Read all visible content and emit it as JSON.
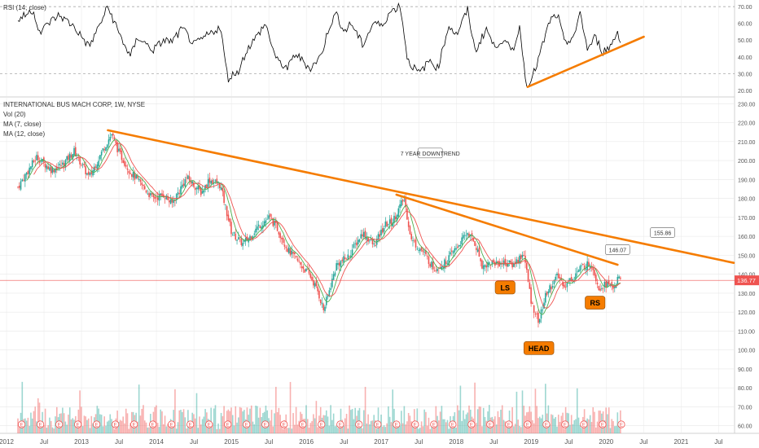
{
  "colors": {
    "up": "#26a69a",
    "down": "#ef5350",
    "ma7": "#4caf50",
    "ma12": "#ef5350",
    "rsi_line": "#000000",
    "trend": "#f57c00",
    "label_fill": "#f57c00",
    "axis_text": "#555555",
    "grid": "#e8e8e8",
    "price_line": "#ef5350",
    "price_tag_bg": "#ef5350"
  },
  "chart_data": {
    "type": "candlestick",
    "symbol_title": "INTERNATIONAL BUS MACH CORP, 1W, NYSE",
    "indicator_labels": [
      "Vol (20)",
      "MA (7, close)",
      "MA (12, close)"
    ],
    "rsi_label": "RSI (14, close)",
    "x_ticks": [
      "2012",
      "Jul",
      "2013",
      "Jul",
      "2014",
      "Jul",
      "2015",
      "Jul",
      "2016",
      "Jul",
      "2017",
      "Jul",
      "2018",
      "Jul",
      "2019",
      "Jul",
      "2020",
      "Jul",
      "2021",
      "Jul"
    ],
    "price_ticks": [
      "230.00",
      "220.00",
      "210.00",
      "200.00",
      "190.00",
      "180.00",
      "170.00",
      "160.00",
      "150.00",
      "140.00",
      "130.00",
      "120.00",
      "110.00",
      "100.00",
      "90.00",
      "80.00",
      "70.00",
      "60.00"
    ],
    "rsi_ticks": [
      "70.00",
      "60.00",
      "50.00",
      "40.00",
      "30.00",
      "20.00"
    ],
    "price_range": [
      56,
      231
    ],
    "rsi_range": [
      17,
      73
    ],
    "last_price": "136.77",
    "close_anchors": [
      [
        2012.0,
        186
      ],
      [
        2012.25,
        202
      ],
      [
        2012.45,
        195
      ],
      [
        2012.6,
        198
      ],
      [
        2012.75,
        205
      ],
      [
        2012.95,
        191
      ],
      [
        2013.15,
        207
      ],
      [
        2013.25,
        214
      ],
      [
        2013.35,
        204
      ],
      [
        2013.5,
        194
      ],
      [
        2013.65,
        187
      ],
      [
        2013.8,
        180
      ],
      [
        2013.95,
        182
      ],
      [
        2014.05,
        177
      ],
      [
        2014.25,
        191
      ],
      [
        2014.45,
        183
      ],
      [
        2014.55,
        190
      ],
      [
        2014.7,
        187
      ],
      [
        2014.85,
        162
      ],
      [
        2015.0,
        156
      ],
      [
        2015.1,
        160
      ],
      [
        2015.2,
        165
      ],
      [
        2015.35,
        170
      ],
      [
        2015.45,
        165
      ],
      [
        2015.6,
        153
      ],
      [
        2015.75,
        146
      ],
      [
        2015.9,
        139
      ],
      [
        2016.0,
        131
      ],
      [
        2016.08,
        121
      ],
      [
        2016.25,
        145
      ],
      [
        2016.4,
        149
      ],
      [
        2016.6,
        162
      ],
      [
        2016.75,
        155
      ],
      [
        2016.9,
        166
      ],
      [
        2017.0,
        168
      ],
      [
        2017.15,
        180
      ],
      [
        2017.25,
        158
      ],
      [
        2017.4,
        152
      ],
      [
        2017.55,
        143
      ],
      [
        2017.7,
        146
      ],
      [
        2017.85,
        154
      ],
      [
        2018.0,
        162
      ],
      [
        2018.1,
        156
      ],
      [
        2018.2,
        144
      ],
      [
        2018.3,
        146
      ],
      [
        2018.5,
        146
      ],
      [
        2018.6,
        145
      ],
      [
        2018.75,
        151
      ],
      [
        2018.85,
        125
      ],
      [
        2018.95,
        115
      ],
      [
        2019.05,
        130
      ],
      [
        2019.2,
        139
      ],
      [
        2019.3,
        134
      ],
      [
        2019.5,
        143
      ],
      [
        2019.6,
        145
      ],
      [
        2019.65,
        146
      ],
      [
        2019.75,
        133
      ],
      [
        2019.85,
        135
      ],
      [
        2019.95,
        133
      ],
      [
        2020.0,
        137
      ],
      [
        2020.05,
        136.77
      ]
    ],
    "rsi_anchors": [
      [
        2012.0,
        62
      ],
      [
        2012.2,
        68
      ],
      [
        2012.3,
        54
      ],
      [
        2012.4,
        60
      ],
      [
        2012.55,
        65
      ],
      [
        2012.75,
        58
      ],
      [
        2012.95,
        46
      ],
      [
        2013.1,
        60
      ],
      [
        2013.2,
        70
      ],
      [
        2013.35,
        54
      ],
      [
        2013.5,
        40
      ],
      [
        2013.6,
        52
      ],
      [
        2013.8,
        44
      ],
      [
        2013.95,
        50
      ],
      [
        2014.05,
        49
      ],
      [
        2014.2,
        57
      ],
      [
        2014.35,
        47
      ],
      [
        2014.5,
        52
      ],
      [
        2014.7,
        58
      ],
      [
        2014.8,
        27
      ],
      [
        2014.95,
        32
      ],
      [
        2015.05,
        44
      ],
      [
        2015.2,
        53
      ],
      [
        2015.3,
        60
      ],
      [
        2015.45,
        38
      ],
      [
        2015.6,
        33
      ],
      [
        2015.7,
        42
      ],
      [
        2015.9,
        33
      ],
      [
        2016.05,
        41
      ],
      [
        2016.15,
        58
      ],
      [
        2016.25,
        66
      ],
      [
        2016.35,
        55
      ],
      [
        2016.45,
        60
      ],
      [
        2016.6,
        47
      ],
      [
        2016.75,
        61
      ],
      [
        2016.85,
        58
      ],
      [
        2016.95,
        66
      ],
      [
        2017.1,
        71
      ],
      [
        2017.2,
        38
      ],
      [
        2017.35,
        30
      ],
      [
        2017.5,
        38
      ],
      [
        2017.6,
        33
      ],
      [
        2017.75,
        59
      ],
      [
        2017.85,
        53
      ],
      [
        2018.0,
        68
      ],
      [
        2018.1,
        43
      ],
      [
        2018.25,
        57
      ],
      [
        2018.35,
        46
      ],
      [
        2018.45,
        50
      ],
      [
        2018.6,
        44
      ],
      [
        2018.7,
        58
      ],
      [
        2018.78,
        22
      ],
      [
        2018.9,
        32
      ],
      [
        2019.0,
        47
      ],
      [
        2019.1,
        62
      ],
      [
        2019.2,
        65
      ],
      [
        2019.3,
        47
      ],
      [
        2019.45,
        55
      ],
      [
        2019.5,
        67
      ],
      [
        2019.6,
        44
      ],
      [
        2019.7,
        52
      ],
      [
        2019.8,
        43
      ],
      [
        2019.9,
        46
      ],
      [
        2020.0,
        55
      ],
      [
        2020.05,
        48
      ]
    ],
    "trendlines": [
      {
        "name": "seven-year-downtrend",
        "points": [
          [
            2013.2,
            216
          ],
          [
            2021.55,
            146
          ]
        ]
      },
      {
        "name": "steep-downtrend",
        "points": [
          [
            2017.05,
            182
          ],
          [
            2020.0,
            145
          ]
        ]
      },
      {
        "name": "rsi-uptrend",
        "points": [
          [
            2018.8,
            22
          ],
          [
            2020.35,
            52
          ]
        ]
      }
    ],
    "callouts": [
      {
        "text": "7 YEAR DOWNTREND",
        "x": 2017.5,
        "y": 204,
        "pointer": [
          2017.5,
          179
        ]
      },
      {
        "text": "LS",
        "x": 2018.5,
        "y": 133
      },
      {
        "text": "HEAD",
        "x": 2018.95,
        "y": 101
      },
      {
        "text": "RS",
        "x": 2019.7,
        "y": 125
      },
      {
        "text": "155.86",
        "x": 2020.6,
        "y": 162
      },
      {
        "text": "146.07",
        "x": 2020.0,
        "y": 153
      }
    ],
    "legend": "top-left",
    "grid": true
  }
}
